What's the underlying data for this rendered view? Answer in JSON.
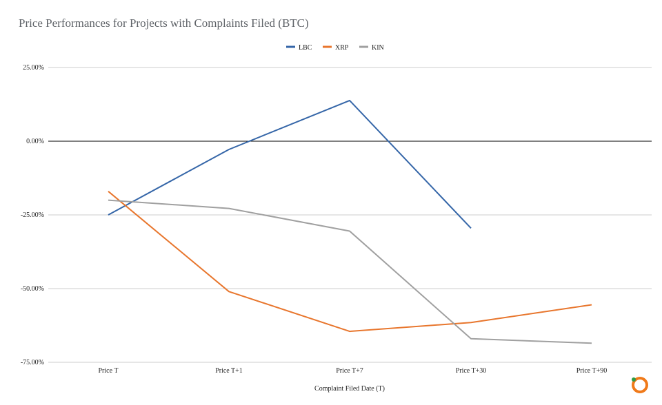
{
  "chart_data": {
    "type": "line",
    "title": "Price Performances for Projects with Complaints Filed (BTC)",
    "xlabel": "Complaint Filed Date (T)",
    "ylabel": "",
    "categories": [
      "Price T",
      "Price T+1",
      "Price T+7",
      "Price T+30",
      "Price T+90"
    ],
    "ylim": [
      -75,
      25
    ],
    "yticks": [
      25,
      0,
      -25,
      -50,
      -75
    ],
    "ytick_labels": [
      "25.00%",
      "0.00%",
      "-25.00%",
      "-50.00%",
      "-75.00%"
    ],
    "grid": true,
    "legend": "top-center",
    "series": [
      {
        "name": "LBC",
        "color": "#3566a8",
        "values": [
          -25.0,
          -2.8,
          13.8,
          -29.5,
          null
        ]
      },
      {
        "name": "XRP",
        "color": "#e8762d",
        "values": [
          -17.0,
          -51.0,
          -64.5,
          -61.5,
          -55.5
        ]
      },
      {
        "name": "KIN",
        "color": "#a0a0a0",
        "values": [
          -20.0,
          -22.8,
          -30.5,
          -67.0,
          -68.5
        ]
      }
    ]
  },
  "watermark": {
    "name": "ring-logo",
    "colors": [
      "#f07a1a",
      "#2e9b45"
    ]
  }
}
